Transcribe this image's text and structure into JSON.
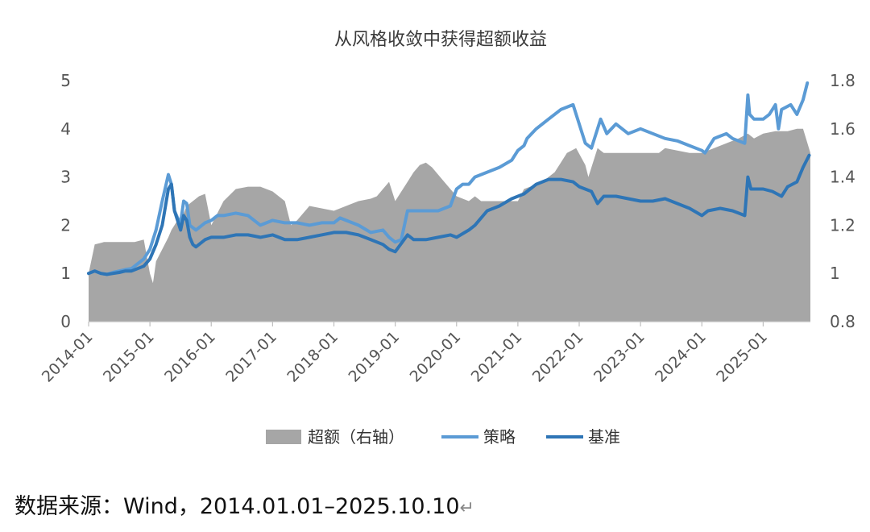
{
  "chart_data": {
    "type": "line",
    "title": "从风格收敛中获得超额收益",
    "left_axis": {
      "ylim": [
        0,
        5
      ],
      "ticks": [
        "0",
        "1",
        "2",
        "3",
        "4",
        "5"
      ]
    },
    "right_axis": {
      "ylim": [
        0.8,
        1.8
      ],
      "ticks": [
        "0.8",
        "1",
        "1.2",
        "1.4",
        "1.6",
        "1.8"
      ]
    },
    "x_ticks": [
      "2014-01",
      "2015-01",
      "2016-01",
      "2017-01",
      "2018-01",
      "2019-01",
      "2020-01",
      "2021-01",
      "2022-01",
      "2023-01",
      "2024-01",
      "2025-01"
    ],
    "xlim": [
      2014.0,
      2025.77
    ],
    "grid": false,
    "legend_position": "bottom",
    "series": [
      {
        "name": "超额（右轴）",
        "kind": "area",
        "axis": "right",
        "color": "#a6a6a6",
        "x": [
          2014.0,
          2014.1,
          2014.25,
          2014.5,
          2014.75,
          2014.9,
          2015.0,
          2015.05,
          2015.1,
          2015.2,
          2015.3,
          2015.35,
          2015.4,
          2015.45,
          2015.5,
          2015.55,
          2015.6,
          2015.7,
          2015.8,
          2015.9,
          2016.0,
          2016.2,
          2016.4,
          2016.6,
          2016.8,
          2017.0,
          2017.2,
          2017.3,
          2017.4,
          2017.5,
          2017.6,
          2017.8,
          2018.0,
          2018.2,
          2018.4,
          2018.6,
          2018.7,
          2018.8,
          2018.9,
          2019.0,
          2019.2,
          2019.3,
          2019.4,
          2019.5,
          2019.6,
          2019.8,
          2020.0,
          2020.2,
          2020.3,
          2020.4,
          2020.6,
          2020.8,
          2021.0,
          2021.1,
          2021.2,
          2021.4,
          2021.6,
          2021.7,
          2021.8,
          2021.95,
          2022.1,
          2022.15,
          2022.25,
          2022.3,
          2022.4,
          2022.6,
          2022.8,
          2023.0,
          2023.2,
          2023.3,
          2023.4,
          2023.6,
          2023.8,
          2024.0,
          2024.2,
          2024.4,
          2024.6,
          2024.75,
          2024.85,
          2025.0,
          2025.2,
          2025.4,
          2025.55,
          2025.65,
          2025.77
        ],
        "values": [
          1.0,
          1.12,
          1.13,
          1.13,
          1.13,
          1.14,
          1.0,
          0.96,
          1.05,
          1.1,
          1.15,
          1.18,
          1.2,
          1.22,
          1.2,
          1.25,
          1.28,
          1.3,
          1.32,
          1.33,
          1.2,
          1.3,
          1.35,
          1.36,
          1.36,
          1.34,
          1.3,
          1.2,
          1.22,
          1.25,
          1.28,
          1.27,
          1.26,
          1.28,
          1.3,
          1.31,
          1.32,
          1.35,
          1.38,
          1.3,
          1.38,
          1.42,
          1.45,
          1.46,
          1.44,
          1.38,
          1.32,
          1.3,
          1.32,
          1.3,
          1.3,
          1.3,
          1.3,
          1.35,
          1.36,
          1.38,
          1.42,
          1.46,
          1.5,
          1.52,
          1.45,
          1.4,
          1.48,
          1.52,
          1.5,
          1.5,
          1.5,
          1.5,
          1.5,
          1.5,
          1.52,
          1.51,
          1.5,
          1.5,
          1.52,
          1.54,
          1.56,
          1.58,
          1.56,
          1.58,
          1.59,
          1.59,
          1.6,
          1.6,
          1.5
        ]
      },
      {
        "name": "策略",
        "kind": "line",
        "axis": "left",
        "color": "#5b9bd5",
        "x": [
          2014.0,
          2014.1,
          2014.2,
          2014.3,
          2014.4,
          2014.5,
          2014.6,
          2014.7,
          2014.8,
          2014.9,
          2015.0,
          2015.1,
          2015.2,
          2015.3,
          2015.35,
          2015.4,
          2015.45,
          2015.5,
          2015.55,
          2015.6,
          2015.65,
          2015.7,
          2015.75,
          2015.8,
          2015.9,
          2016.0,
          2016.05,
          2016.1,
          2016.2,
          2016.4,
          2016.6,
          2016.8,
          2017.0,
          2017.2,
          2017.4,
          2017.6,
          2017.8,
          2018.0,
          2018.1,
          2018.2,
          2018.4,
          2018.6,
          2018.8,
          2018.9,
          2019.0,
          2019.1,
          2019.2,
          2019.3,
          2019.5,
          2019.7,
          2019.9,
          2020.0,
          2020.1,
          2020.2,
          2020.3,
          2020.5,
          2020.7,
          2020.9,
          2021.0,
          2021.1,
          2021.15,
          2021.3,
          2021.5,
          2021.7,
          2021.8,
          2021.9,
          2022.0,
          2022.1,
          2022.2,
          2022.3,
          2022.35,
          2022.45,
          2022.6,
          2022.8,
          2023.0,
          2023.2,
          2023.4,
          2023.6,
          2023.8,
          2024.0,
          2024.05,
          2024.2,
          2024.4,
          2024.5,
          2024.6,
          2024.7,
          2024.75,
          2024.78,
          2024.85,
          2025.0,
          2025.1,
          2025.2,
          2025.25,
          2025.3,
          2025.45,
          2025.55,
          2025.65,
          2025.72
        ],
        "values": [
          1.0,
          1.05,
          1.0,
          0.98,
          1.02,
          1.05,
          1.08,
          1.1,
          1.2,
          1.3,
          1.5,
          1.9,
          2.5,
          3.05,
          2.85,
          2.3,
          2.15,
          2.05,
          2.5,
          2.45,
          2.0,
          1.95,
          1.9,
          1.95,
          2.05,
          2.1,
          2.15,
          2.2,
          2.2,
          2.25,
          2.2,
          2.0,
          2.1,
          2.05,
          2.05,
          2.0,
          2.05,
          2.05,
          2.15,
          2.1,
          2.0,
          1.85,
          1.9,
          1.75,
          1.65,
          1.7,
          2.3,
          2.3,
          2.3,
          2.3,
          2.4,
          2.75,
          2.85,
          2.85,
          3.0,
          3.1,
          3.2,
          3.35,
          3.55,
          3.65,
          3.8,
          4.0,
          4.2,
          4.4,
          4.45,
          4.5,
          4.1,
          3.7,
          3.6,
          4.0,
          4.2,
          3.9,
          4.1,
          3.9,
          4.0,
          3.9,
          3.8,
          3.75,
          3.65,
          3.55,
          3.5,
          3.8,
          3.9,
          3.8,
          3.75,
          3.7,
          4.7,
          4.3,
          4.2,
          4.2,
          4.3,
          4.5,
          4.0,
          4.4,
          4.5,
          4.3,
          4.6,
          4.95
        ]
      },
      {
        "name": "基准",
        "kind": "line",
        "axis": "left",
        "color": "#2e75b6",
        "x": [
          2014.0,
          2014.1,
          2014.2,
          2014.3,
          2014.4,
          2014.5,
          2014.6,
          2014.7,
          2014.8,
          2014.9,
          2015.0,
          2015.1,
          2015.2,
          2015.3,
          2015.35,
          2015.4,
          2015.45,
          2015.5,
          2015.55,
          2015.6,
          2015.65,
          2015.7,
          2015.75,
          2015.8,
          2015.9,
          2016.0,
          2016.2,
          2016.4,
          2016.6,
          2016.8,
          2017.0,
          2017.2,
          2017.4,
          2017.6,
          2017.8,
          2018.0,
          2018.2,
          2018.4,
          2018.6,
          2018.8,
          2018.9,
          2019.0,
          2019.2,
          2019.3,
          2019.5,
          2019.7,
          2019.9,
          2020.0,
          2020.2,
          2020.3,
          2020.5,
          2020.7,
          2020.9,
          2021.0,
          2021.1,
          2021.3,
          2021.5,
          2021.7,
          2021.9,
          2022.0,
          2022.2,
          2022.3,
          2022.4,
          2022.6,
          2022.8,
          2023.0,
          2023.2,
          2023.4,
          2023.6,
          2023.8,
          2024.0,
          2024.1,
          2024.3,
          2024.5,
          2024.6,
          2024.7,
          2024.75,
          2024.8,
          2025.0,
          2025.15,
          2025.3,
          2025.4,
          2025.55,
          2025.65,
          2025.75
        ],
        "values": [
          1.0,
          1.05,
          1.0,
          0.98,
          1.0,
          1.02,
          1.05,
          1.05,
          1.1,
          1.15,
          1.3,
          1.6,
          2.0,
          2.75,
          2.85,
          2.3,
          2.1,
          1.9,
          2.2,
          2.1,
          1.75,
          1.6,
          1.55,
          1.6,
          1.7,
          1.75,
          1.75,
          1.8,
          1.8,
          1.75,
          1.8,
          1.7,
          1.7,
          1.75,
          1.8,
          1.85,
          1.85,
          1.8,
          1.7,
          1.6,
          1.5,
          1.45,
          1.8,
          1.7,
          1.7,
          1.75,
          1.8,
          1.75,
          1.9,
          2.0,
          2.3,
          2.4,
          2.55,
          2.6,
          2.65,
          2.85,
          2.95,
          2.95,
          2.9,
          2.8,
          2.7,
          2.45,
          2.6,
          2.6,
          2.55,
          2.5,
          2.5,
          2.55,
          2.45,
          2.35,
          2.2,
          2.3,
          2.35,
          2.3,
          2.25,
          2.2,
          3.0,
          2.75,
          2.75,
          2.7,
          2.6,
          2.8,
          2.9,
          3.2,
          3.45
        ]
      }
    ]
  },
  "source_text": "数据来源：Wind，2014.01.01–2025.10.10",
  "source_return_mark": "↵"
}
